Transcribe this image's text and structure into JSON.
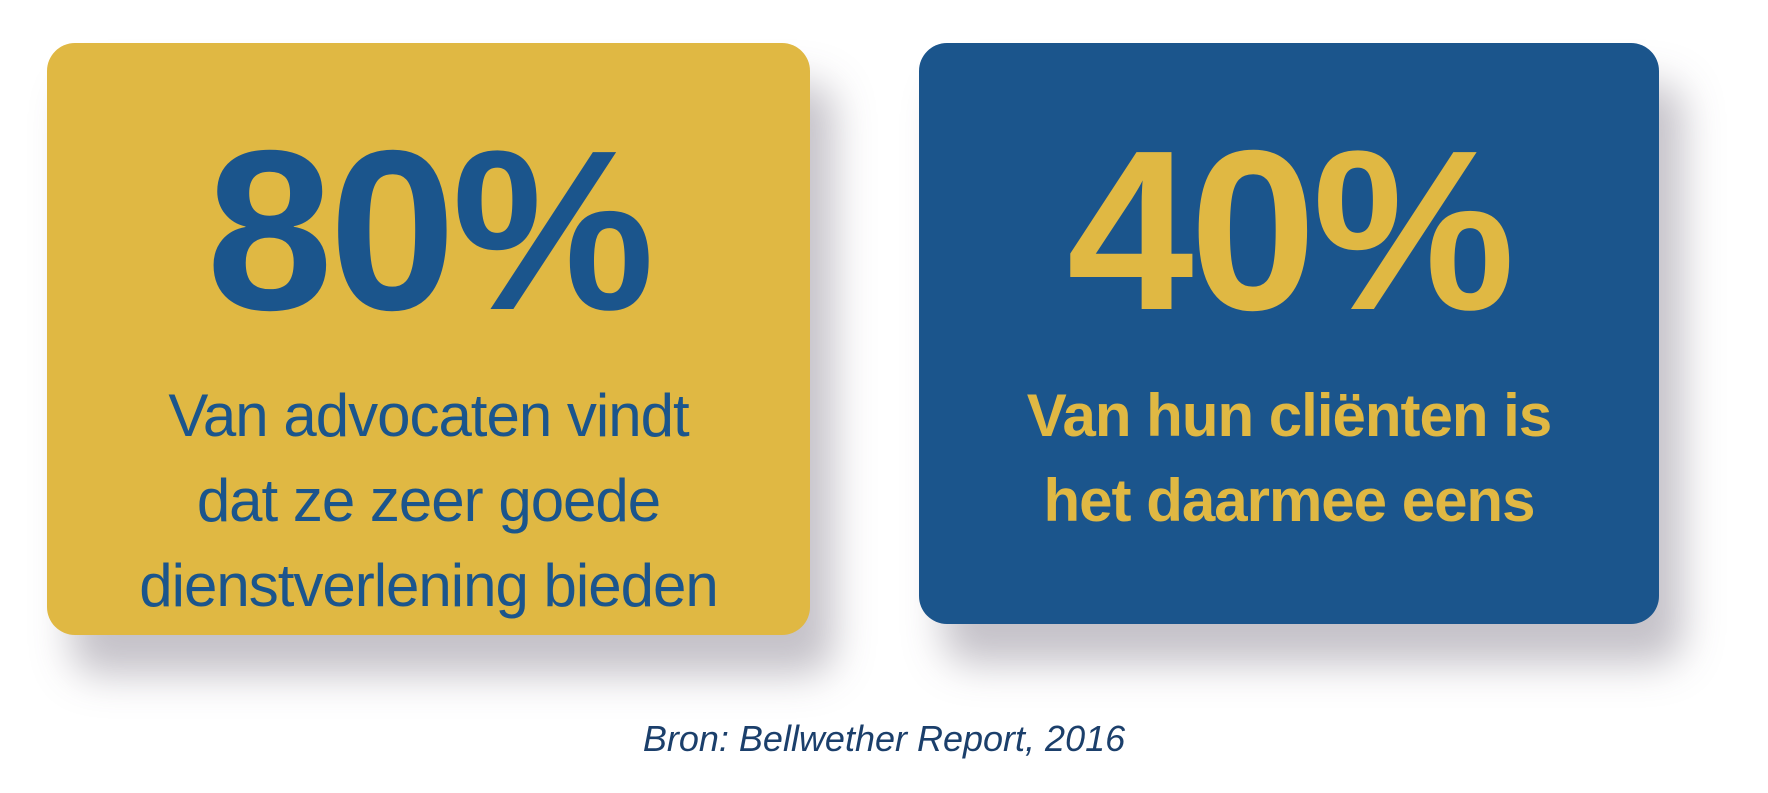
{
  "cards": [
    {
      "value": "80%",
      "lines": [
        "Van advocaten vindt",
        "dat ze zeer goede",
        "dienstverlening bieden"
      ]
    },
    {
      "value": "40%",
      "lines": [
        "Van hun cliënten is",
        "het daarmee eens"
      ]
    }
  ],
  "source": "Bron: Bellwether Report, 2016"
}
